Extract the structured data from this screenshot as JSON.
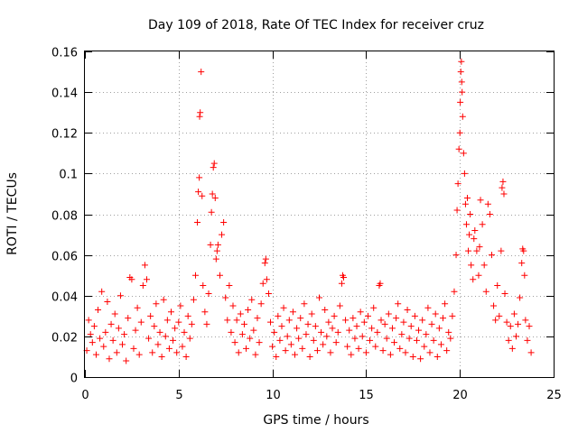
{
  "chart_data": {
    "type": "scatter",
    "title": "Day 109 of 2018, Rate Of TEC Index for receiver cruz",
    "xlabel": "GPS time / hours",
    "ylabel": "ROTI / TECUs",
    "xlim": [
      0,
      25
    ],
    "ylim": [
      0,
      0.16
    ],
    "xticks": [
      0,
      5,
      10,
      15,
      20,
      25
    ],
    "yticks": [
      0,
      0.02,
      0.04,
      0.06,
      0.08,
      0.1,
      0.12,
      0.14,
      0.16
    ],
    "xtick_labels": [
      "0",
      "5",
      "10",
      "15",
      "20",
      "25"
    ],
    "ytick_labels": [
      "0",
      "0.02",
      "0.04",
      "0.06",
      "0.08",
      "0.1",
      "0.12",
      "0.14",
      "0.16"
    ],
    "grid": true,
    "marker": "+",
    "marker_color": "#ff0000",
    "series": [
      {
        "name": "ROTI",
        "points": [
          [
            0.1,
            0.013
          ],
          [
            0.2,
            0.028
          ],
          [
            0.3,
            0.021
          ],
          [
            0.4,
            0.017
          ],
          [
            0.5,
            0.025
          ],
          [
            0.6,
            0.011
          ],
          [
            0.7,
            0.033
          ],
          [
            0.8,
            0.019
          ],
          [
            0.9,
            0.042
          ],
          [
            1.0,
            0.015
          ],
          [
            1.1,
            0.022
          ],
          [
            1.2,
            0.037
          ],
          [
            1.3,
            0.009
          ],
          [
            1.4,
            0.026
          ],
          [
            1.5,
            0.018
          ],
          [
            1.6,
            0.031
          ],
          [
            1.7,
            0.012
          ],
          [
            1.8,
            0.024
          ],
          [
            1.9,
            0.04
          ],
          [
            2.0,
            0.016
          ],
          [
            2.1,
            0.021
          ],
          [
            2.2,
            0.008
          ],
          [
            2.3,
            0.029
          ],
          [
            2.4,
            0.049
          ],
          [
            2.5,
            0.048
          ],
          [
            2.6,
            0.014
          ],
          [
            2.7,
            0.023
          ],
          [
            2.8,
            0.034
          ],
          [
            2.9,
            0.011
          ],
          [
            3.0,
            0.027
          ],
          [
            3.1,
            0.045
          ],
          [
            3.2,
            0.055
          ],
          [
            3.3,
            0.048
          ],
          [
            3.4,
            0.019
          ],
          [
            3.5,
            0.03
          ],
          [
            3.6,
            0.012
          ],
          [
            3.7,
            0.025
          ],
          [
            3.8,
            0.036
          ],
          [
            3.9,
            0.016
          ],
          [
            4.0,
            0.022
          ],
          [
            4.1,
            0.01
          ],
          [
            4.2,
            0.038
          ],
          [
            4.3,
            0.02
          ],
          [
            4.4,
            0.028
          ],
          [
            4.5,
            0.014
          ],
          [
            4.6,
            0.032
          ],
          [
            4.7,
            0.018
          ],
          [
            4.8,
            0.024
          ],
          [
            4.9,
            0.012
          ],
          [
            5.0,
            0.027
          ],
          [
            5.1,
            0.035
          ],
          [
            5.2,
            0.015
          ],
          [
            5.3,
            0.022
          ],
          [
            5.4,
            0.01
          ],
          [
            5.5,
            0.03
          ],
          [
            5.6,
            0.019
          ],
          [
            5.7,
            0.026
          ],
          [
            5.8,
            0.038
          ],
          [
            5.9,
            0.05
          ],
          [
            6.0,
            0.076
          ],
          [
            6.05,
            0.091
          ],
          [
            6.1,
            0.098
          ],
          [
            6.12,
            0.128
          ],
          [
            6.15,
            0.13
          ],
          [
            6.2,
            0.15
          ],
          [
            6.25,
            0.089
          ],
          [
            6.3,
            0.045
          ],
          [
            6.4,
            0.032
          ],
          [
            6.5,
            0.026
          ],
          [
            6.6,
            0.041
          ],
          [
            6.7,
            0.065
          ],
          [
            6.75,
            0.081
          ],
          [
            6.8,
            0.09
          ],
          [
            6.85,
            0.103
          ],
          [
            6.9,
            0.105
          ],
          [
            6.95,
            0.088
          ],
          [
            7.0,
            0.058
          ],
          [
            7.05,
            0.062
          ],
          [
            7.1,
            0.065
          ],
          [
            7.2,
            0.05
          ],
          [
            7.3,
            0.07
          ],
          [
            7.4,
            0.076
          ],
          [
            7.5,
            0.039
          ],
          [
            7.6,
            0.028
          ],
          [
            7.7,
            0.045
          ],
          [
            7.8,
            0.022
          ],
          [
            7.9,
            0.035
          ],
          [
            8.0,
            0.017
          ],
          [
            8.1,
            0.028
          ],
          [
            8.2,
            0.012
          ],
          [
            8.3,
            0.031
          ],
          [
            8.4,
            0.021
          ],
          [
            8.5,
            0.026
          ],
          [
            8.6,
            0.014
          ],
          [
            8.7,
            0.033
          ],
          [
            8.8,
            0.019
          ],
          [
            8.9,
            0.038
          ],
          [
            9.0,
            0.023
          ],
          [
            9.1,
            0.011
          ],
          [
            9.2,
            0.029
          ],
          [
            9.3,
            0.017
          ],
          [
            9.4,
            0.036
          ],
          [
            9.5,
            0.046
          ],
          [
            9.6,
            0.056
          ],
          [
            9.65,
            0.058
          ],
          [
            9.7,
            0.048
          ],
          [
            9.8,
            0.041
          ],
          [
            9.9,
            0.027
          ],
          [
            10.0,
            0.015
          ],
          [
            10.1,
            0.022
          ],
          [
            10.2,
            0.01
          ],
          [
            10.3,
            0.03
          ],
          [
            10.4,
            0.018
          ],
          [
            10.5,
            0.025
          ],
          [
            10.6,
            0.034
          ],
          [
            10.7,
            0.013
          ],
          [
            10.8,
            0.02
          ],
          [
            10.9,
            0.028
          ],
          [
            11.0,
            0.016
          ],
          [
            11.1,
            0.032
          ],
          [
            11.2,
            0.011
          ],
          [
            11.3,
            0.024
          ],
          [
            11.4,
            0.019
          ],
          [
            11.5,
            0.029
          ],
          [
            11.6,
            0.014
          ],
          [
            11.7,
            0.036
          ],
          [
            11.8,
            0.021
          ],
          [
            11.9,
            0.026
          ],
          [
            12.0,
            0.01
          ],
          [
            12.1,
            0.031
          ],
          [
            12.2,
            0.018
          ],
          [
            12.3,
            0.025
          ],
          [
            12.4,
            0.013
          ],
          [
            12.5,
            0.039
          ],
          [
            12.6,
            0.022
          ],
          [
            12.7,
            0.016
          ],
          [
            12.8,
            0.033
          ],
          [
            12.9,
            0.02
          ],
          [
            13.0,
            0.027
          ],
          [
            13.1,
            0.012
          ],
          [
            13.2,
            0.024
          ],
          [
            13.3,
            0.03
          ],
          [
            13.4,
            0.017
          ],
          [
            13.5,
            0.022
          ],
          [
            13.6,
            0.035
          ],
          [
            13.7,
            0.046
          ],
          [
            13.75,
            0.05
          ],
          [
            13.8,
            0.049
          ],
          [
            13.9,
            0.028
          ],
          [
            14.0,
            0.015
          ],
          [
            14.1,
            0.023
          ],
          [
            14.2,
            0.011
          ],
          [
            14.3,
            0.029
          ],
          [
            14.4,
            0.019
          ],
          [
            14.5,
            0.025
          ],
          [
            14.6,
            0.014
          ],
          [
            14.7,
            0.032
          ],
          [
            14.8,
            0.02
          ],
          [
            14.9,
            0.027
          ],
          [
            15.0,
            0.012
          ],
          [
            15.1,
            0.03
          ],
          [
            15.2,
            0.018
          ],
          [
            15.3,
            0.024
          ],
          [
            15.4,
            0.034
          ],
          [
            15.5,
            0.015
          ],
          [
            15.6,
            0.022
          ],
          [
            15.7,
            0.045
          ],
          [
            15.75,
            0.046
          ],
          [
            15.8,
            0.028
          ],
          [
            15.9,
            0.013
          ],
          [
            16.0,
            0.026
          ],
          [
            16.1,
            0.019
          ],
          [
            16.2,
            0.031
          ],
          [
            16.3,
            0.011
          ],
          [
            16.4,
            0.024
          ],
          [
            16.5,
            0.017
          ],
          [
            16.6,
            0.029
          ],
          [
            16.7,
            0.036
          ],
          [
            16.8,
            0.014
          ],
          [
            16.9,
            0.021
          ],
          [
            17.0,
            0.027
          ],
          [
            17.1,
            0.012
          ],
          [
            17.2,
            0.033
          ],
          [
            17.3,
            0.019
          ],
          [
            17.4,
            0.025
          ],
          [
            17.5,
            0.01
          ],
          [
            17.6,
            0.03
          ],
          [
            17.7,
            0.018
          ],
          [
            17.8,
            0.023
          ],
          [
            17.9,
            0.009
          ],
          [
            18.0,
            0.028
          ],
          [
            18.1,
            0.015
          ],
          [
            18.2,
            0.021
          ],
          [
            18.3,
            0.034
          ],
          [
            18.4,
            0.012
          ],
          [
            18.5,
            0.026
          ],
          [
            18.6,
            0.018
          ],
          [
            18.7,
            0.031
          ],
          [
            18.8,
            0.01
          ],
          [
            18.9,
            0.024
          ],
          [
            19.0,
            0.016
          ],
          [
            19.1,
            0.029
          ],
          [
            19.2,
            0.036
          ],
          [
            19.3,
            0.013
          ],
          [
            19.4,
            0.022
          ],
          [
            19.5,
            0.019
          ],
          [
            19.6,
            0.03
          ],
          [
            19.7,
            0.042
          ],
          [
            19.8,
            0.06
          ],
          [
            19.85,
            0.082
          ],
          [
            19.9,
            0.095
          ],
          [
            19.95,
            0.112
          ],
          [
            20.0,
            0.12
          ],
          [
            20.02,
            0.135
          ],
          [
            20.05,
            0.15
          ],
          [
            20.08,
            0.155
          ],
          [
            20.1,
            0.145
          ],
          [
            20.12,
            0.14
          ],
          [
            20.15,
            0.128
          ],
          [
            20.2,
            0.11
          ],
          [
            20.25,
            0.1
          ],
          [
            20.3,
            0.085
          ],
          [
            20.35,
            0.075
          ],
          [
            20.4,
            0.088
          ],
          [
            20.45,
            0.062
          ],
          [
            20.5,
            0.07
          ],
          [
            20.55,
            0.08
          ],
          [
            20.6,
            0.055
          ],
          [
            20.7,
            0.048
          ],
          [
            20.75,
            0.068
          ],
          [
            20.8,
            0.072
          ],
          [
            20.9,
            0.062
          ],
          [
            21.0,
            0.05
          ],
          [
            21.05,
            0.064
          ],
          [
            21.1,
            0.087
          ],
          [
            21.2,
            0.075
          ],
          [
            21.3,
            0.055
          ],
          [
            21.4,
            0.042
          ],
          [
            21.5,
            0.085
          ],
          [
            21.6,
            0.08
          ],
          [
            21.7,
            0.06
          ],
          [
            21.8,
            0.035
          ],
          [
            21.9,
            0.028
          ],
          [
            22.0,
            0.045
          ],
          [
            22.1,
            0.03
          ],
          [
            22.2,
            0.062
          ],
          [
            22.25,
            0.093
          ],
          [
            22.3,
            0.096
          ],
          [
            22.35,
            0.09
          ],
          [
            22.4,
            0.041
          ],
          [
            22.5,
            0.027
          ],
          [
            22.6,
            0.018
          ],
          [
            22.7,
            0.025
          ],
          [
            22.8,
            0.014
          ],
          [
            22.9,
            0.031
          ],
          [
            23.0,
            0.02
          ],
          [
            23.1,
            0.026
          ],
          [
            23.2,
            0.039
          ],
          [
            23.3,
            0.056
          ],
          [
            23.35,
            0.063
          ],
          [
            23.4,
            0.062
          ],
          [
            23.45,
            0.05
          ],
          [
            23.5,
            0.028
          ],
          [
            23.6,
            0.018
          ],
          [
            23.7,
            0.025
          ],
          [
            23.8,
            0.012
          ]
        ]
      }
    ]
  }
}
